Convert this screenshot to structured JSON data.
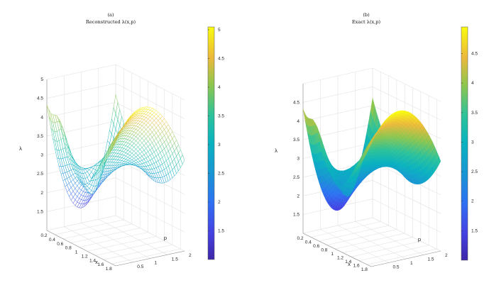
{
  "chart_data": [
    {
      "type": "surface",
      "render": "mesh",
      "label": "(a)",
      "title": "Reconstructed λ(x,p)",
      "xlabel": "x",
      "ylabel": "p",
      "zlabel": "λ",
      "xlim": [
        0.2,
        1.9
      ],
      "ylim": [
        0,
        2
      ],
      "zlim": [
        1,
        5
      ],
      "xticks": [
        "0.2",
        "0.4",
        "0.6",
        "0.8",
        "1",
        "1.2",
        "1.4",
        "1.6",
        "1.8"
      ],
      "yticks": [
        "0.5",
        "1",
        "1.5",
        "2"
      ],
      "zticks": [
        "1.5",
        "2",
        "2.5",
        "3",
        "3.5",
        "4",
        "4.5",
        "5"
      ],
      "colorbar": {
        "min": 1.0,
        "max": 5.05,
        "ticks": [
          "1.5",
          "2",
          "2.5",
          "3",
          "3.5",
          "4",
          "4.5",
          "5"
        ]
      },
      "colormap": "parula",
      "surface_samples": {
        "x": [
          0.2,
          1.0,
          1.9
        ],
        "p": [
          0,
          1,
          2
        ],
        "z": [
          [
            4.3,
            1.4,
            4.2
          ],
          [
            3.0,
            3.3,
            2.5
          ],
          [
            4.3,
            5.0,
            3.4
          ]
        ]
      }
    },
    {
      "type": "surface",
      "render": "shaded",
      "label": "(b)",
      "title": "Exact λ(x,p)",
      "xlabel": "x",
      "ylabel": "p",
      "zlabel": "λ",
      "xlim": [
        0.2,
        1.9
      ],
      "ylim": [
        0,
        2
      ],
      "zlim": [
        1,
        5
      ],
      "xticks": [
        "0.2",
        "0.4",
        "0.6",
        "0.8",
        "1",
        "1.2",
        "1.4",
        "1.6",
        "1.8"
      ],
      "yticks": [
        "0.5",
        "1",
        "1.5",
        "2"
      ],
      "zticks": [
        "1.5",
        "2",
        "2.5",
        "3",
        "3.5",
        "4",
        "4.5"
      ],
      "colorbar": {
        "min": 1.0,
        "max": 4.95,
        "ticks": [
          "1.5",
          "2",
          "2.5",
          "3",
          "3.5",
          "4",
          "4.5"
        ]
      },
      "colormap": "parula",
      "surface_samples": {
        "x": [
          0.2,
          1.0,
          1.9
        ],
        "p": [
          0,
          1,
          2
        ],
        "z": [
          [
            4.3,
            1.4,
            4.2
          ],
          [
            3.0,
            3.3,
            2.5
          ],
          [
            4.3,
            4.95,
            3.4
          ]
        ]
      }
    }
  ]
}
